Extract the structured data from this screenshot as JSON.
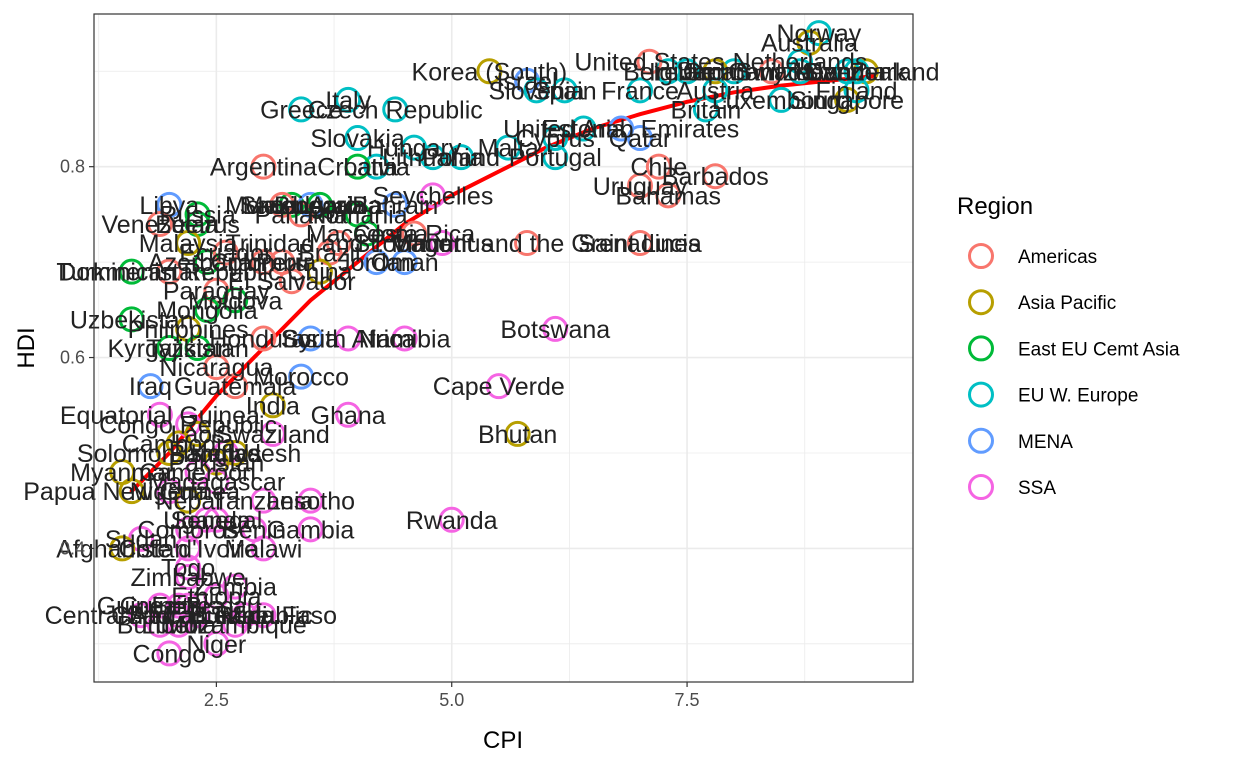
{
  "chart_data": {
    "type": "scatter",
    "xlabel": "CPI",
    "ylabel": "HDI",
    "xlim": [
      1.2,
      9.9
    ],
    "ylim": [
      0.26,
      0.96
    ],
    "x_ticks": [
      {
        "v": 2.5,
        "label": "2.5"
      },
      {
        "v": 5.0,
        "label": "5.0"
      },
      {
        "v": 7.5,
        "label": "7.5"
      }
    ],
    "y_ticks": [
      {
        "v": 0.4,
        "label": "0.4"
      },
      {
        "v": 0.6,
        "label": "0.6"
      },
      {
        "v": 0.8,
        "label": "0.8"
      }
    ],
    "grid": true,
    "legend": {
      "title": "Region",
      "position": "right",
      "entries": [
        {
          "name": "Americas",
          "color": "#F8766D"
        },
        {
          "name": "Asia Pacific",
          "color": "#B79F00"
        },
        {
          "name": "East EU Cemt Asia",
          "color": "#00BA38"
        },
        {
          "name": "EU W. Europe",
          "color": "#00BFC4"
        },
        {
          "name": "MENA",
          "color": "#619CFF"
        },
        {
          "name": "SSA",
          "color": "#F564E3"
        }
      ]
    },
    "trend_line": {
      "color": "#FF0000",
      "points": [
        [
          1.6,
          0.46
        ],
        [
          2.0,
          0.5
        ],
        [
          2.5,
          0.56
        ],
        [
          3.0,
          0.61
        ],
        [
          3.5,
          0.66
        ],
        [
          4.0,
          0.7
        ],
        [
          4.5,
          0.74
        ],
        [
          5.0,
          0.77
        ],
        [
          5.5,
          0.795
        ],
        [
          6.0,
          0.82
        ],
        [
          6.5,
          0.84
        ],
        [
          7.0,
          0.855
        ],
        [
          7.5,
          0.868
        ],
        [
          8.0,
          0.878
        ],
        [
          8.5,
          0.885
        ],
        [
          9.0,
          0.89
        ],
        [
          9.5,
          0.895
        ]
      ]
    },
    "points": [
      {
        "x": 8.9,
        "y": 0.94,
        "region": "EU W. Europe",
        "label": "Norway"
      },
      {
        "x": 8.8,
        "y": 0.93,
        "region": "Asia Pacific",
        "label": "Australia"
      },
      {
        "x": 9.4,
        "y": 0.9,
        "region": "Asia Pacific",
        "label": "New Zealand"
      },
      {
        "x": 9.2,
        "y": 0.87,
        "region": "Asia Pacific",
        "label": "Singapore"
      },
      {
        "x": 9.3,
        "y": 0.88,
        "region": "EU W. Europe",
        "label": "Finland"
      },
      {
        "x": 9.3,
        "y": 0.9,
        "region": "EU W. Europe",
        "label": "Denmark"
      },
      {
        "x": 9.2,
        "y": 0.9,
        "region": "EU W. Europe",
        "label": "Sweden"
      },
      {
        "x": 8.7,
        "y": 0.91,
        "region": "EU W. Europe",
        "label": "Netherlands"
      },
      {
        "x": 8.7,
        "y": 0.9,
        "region": "EU W. Europe",
        "label": "Switzerland"
      },
      {
        "x": 8.5,
        "y": 0.87,
        "region": "EU W. Europe",
        "label": "Luxembourg"
      },
      {
        "x": 8.4,
        "y": 0.9,
        "region": "Americas",
        "label": "Canada"
      },
      {
        "x": 8.0,
        "y": 0.9,
        "region": "EU W. Europe",
        "label": "Germany"
      },
      {
        "x": 7.7,
        "y": 0.86,
        "region": "EU W. Europe",
        "label": "Britain"
      },
      {
        "x": 7.8,
        "y": 0.9,
        "region": "Asia Pacific",
        "label": "Japan"
      },
      {
        "x": 7.5,
        "y": 0.9,
        "region": "EU W. Europe",
        "label": "Ireland"
      },
      {
        "x": 7.3,
        "y": 0.9,
        "region": "EU W. Europe",
        "label": "Belgium"
      },
      {
        "x": 7.1,
        "y": 0.91,
        "region": "Americas",
        "label": "United States"
      },
      {
        "x": 7.8,
        "y": 0.88,
        "region": "EU W. Europe",
        "label": "Austria"
      },
      {
        "x": 7.0,
        "y": 0.88,
        "region": "EU W. Europe",
        "label": "France"
      },
      {
        "x": 6.8,
        "y": 0.84,
        "region": "MENA",
        "label": "United Arab Emirates"
      },
      {
        "x": 7.0,
        "y": 0.83,
        "region": "MENA",
        "label": "Qatar"
      },
      {
        "x": 7.2,
        "y": 0.8,
        "region": "Americas",
        "label": "Chile"
      },
      {
        "x": 7.8,
        "y": 0.79,
        "region": "Americas",
        "label": "Barbados"
      },
      {
        "x": 7.0,
        "y": 0.78,
        "region": "Americas",
        "label": "Uruguay"
      },
      {
        "x": 7.3,
        "y": 0.77,
        "region": "Americas",
        "label": "Bahamas"
      },
      {
        "x": 5.4,
        "y": 0.9,
        "region": "Asia Pacific",
        "label": "Korea (South)"
      },
      {
        "x": 5.8,
        "y": 0.89,
        "region": "MENA",
        "label": "Israel"
      },
      {
        "x": 5.9,
        "y": 0.88,
        "region": "EU W. Europe",
        "label": "Slovenia"
      },
      {
        "x": 6.2,
        "y": 0.88,
        "region": "EU W. Europe",
        "label": "Spain"
      },
      {
        "x": 6.4,
        "y": 0.84,
        "region": "EU W. Europe",
        "label": "Estonia"
      },
      {
        "x": 5.6,
        "y": 0.82,
        "region": "EU W. Europe",
        "label": "Malta"
      },
      {
        "x": 6.1,
        "y": 0.81,
        "region": "EU W. Europe",
        "label": "Portugal"
      },
      {
        "x": 6.1,
        "y": 0.83,
        "region": "EU W. Europe",
        "label": "Cyprus"
      },
      {
        "x": 3.9,
        "y": 0.87,
        "region": "EU W. Europe",
        "label": "Italy"
      },
      {
        "x": 4.4,
        "y": 0.86,
        "region": "EU W. Europe",
        "label": "Czech Republic"
      },
      {
        "x": 3.4,
        "y": 0.86,
        "region": "EU W. Europe",
        "label": "Greece"
      },
      {
        "x": 4.0,
        "y": 0.83,
        "region": "EU W. Europe",
        "label": "Slovakia"
      },
      {
        "x": 4.6,
        "y": 0.82,
        "region": "EU W. Europe",
        "label": "Hungary"
      },
      {
        "x": 5.1,
        "y": 0.81,
        "region": "EU W. Europe",
        "label": "Poland"
      },
      {
        "x": 4.8,
        "y": 0.81,
        "region": "EU W. Europe",
        "label": "Lithuania"
      },
      {
        "x": 4.2,
        "y": 0.8,
        "region": "EU W. Europe",
        "label": "Latvia"
      },
      {
        "x": 3.0,
        "y": 0.8,
        "region": "Americas",
        "label": "Argentina"
      },
      {
        "x": 4.0,
        "y": 0.8,
        "region": "East EU Cemt Asia",
        "label": "Croatia"
      },
      {
        "x": 4.8,
        "y": 0.77,
        "region": "SSA",
        "label": "Seychelles"
      },
      {
        "x": 4.4,
        "y": 0.76,
        "region": "MENA",
        "label": "Bahrain"
      },
      {
        "x": 3.3,
        "y": 0.76,
        "region": "East EU Cemt Asia",
        "label": "Montenegro"
      },
      {
        "x": 3.5,
        "y": 0.76,
        "region": "MENA",
        "label": "Saudi Arabia"
      },
      {
        "x": 4.0,
        "y": 0.75,
        "region": "East EU Cemt Asia",
        "label": "Romania"
      },
      {
        "x": 3.6,
        "y": 0.76,
        "region": "East EU Cemt Asia",
        "label": "Bulgaria"
      },
      {
        "x": 2.0,
        "y": 0.76,
        "region": "MENA",
        "label": "Libya"
      },
      {
        "x": 2.3,
        "y": 0.75,
        "region": "East EU Cemt Asia",
        "label": "Russia"
      },
      {
        "x": 3.2,
        "y": 0.76,
        "region": "Americas",
        "label": "Mexico"
      },
      {
        "x": 3.4,
        "y": 0.75,
        "region": "Americas",
        "label": "Panama"
      },
      {
        "x": 2.3,
        "y": 0.74,
        "region": "East EU Cemt Asia",
        "label": "Belarus"
      },
      {
        "x": 4.6,
        "y": 0.73,
        "region": "Americas",
        "label": "Costa Rica"
      },
      {
        "x": 4.9,
        "y": 0.72,
        "region": "SSA",
        "label": "Mauritius"
      },
      {
        "x": 5.8,
        "y": 0.72,
        "region": "Americas",
        "label": "St. Vincent and the Grenadines"
      },
      {
        "x": 7.0,
        "y": 0.72,
        "region": "Americas",
        "label": "Saint Lucia"
      },
      {
        "x": 1.9,
        "y": 0.74,
        "region": "Americas",
        "label": "Venezuela"
      },
      {
        "x": 4.1,
        "y": 0.73,
        "region": "East EU Cemt Asia",
        "label": "Macedonia"
      },
      {
        "x": 3.8,
        "y": 0.72,
        "region": "Americas",
        "label": "Trinidad and Tobago"
      },
      {
        "x": 4.5,
        "y": 0.7,
        "region": "MENA",
        "label": "Oman"
      },
      {
        "x": 2.2,
        "y": 0.72,
        "region": "Asia Pacific",
        "label": "Malaysia"
      },
      {
        "x": 2.4,
        "y": 0.7,
        "region": "East EU Cemt Asia",
        "label": "Azerbaijan"
      },
      {
        "x": 2.6,
        "y": 0.71,
        "region": "Americas",
        "label": "Ecuador"
      },
      {
        "x": 3.0,
        "y": 0.7,
        "region": "Americas",
        "label": "Colombia"
      },
      {
        "x": 3.2,
        "y": 0.7,
        "region": "Americas",
        "label": "Peru"
      },
      {
        "x": 3.7,
        "y": 0.71,
        "region": "Americas",
        "label": "Brazil"
      },
      {
        "x": 4.2,
        "y": 0.7,
        "region": "MENA",
        "label": "Jordan"
      },
      {
        "x": 1.6,
        "y": 0.69,
        "region": "East EU Cemt Asia",
        "label": "Turkmenistan"
      },
      {
        "x": 2.0,
        "y": 0.69,
        "region": "Americas",
        "label": "Dominican Republic"
      },
      {
        "x": 3.3,
        "y": 0.68,
        "region": "Americas",
        "label": "El Salvador"
      },
      {
        "x": 3.6,
        "y": 0.69,
        "region": "Asia Pacific",
        "label": "China"
      },
      {
        "x": 2.5,
        "y": 0.67,
        "region": "Americas",
        "label": "Paraguay"
      },
      {
        "x": 2.7,
        "y": 0.66,
        "region": "East EU Cemt Asia",
        "label": "Moldova"
      },
      {
        "x": 2.4,
        "y": 0.65,
        "region": "East EU Cemt Asia",
        "label": "Mongolia"
      },
      {
        "x": 1.6,
        "y": 0.64,
        "region": "East EU Cemt Asia",
        "label": "Uzbekistan"
      },
      {
        "x": 2.2,
        "y": 0.63,
        "region": "Asia Pacific",
        "label": "Philippines"
      },
      {
        "x": 2.0,
        "y": 0.61,
        "region": "East EU Cemt Asia",
        "label": "Kyrgyzstan"
      },
      {
        "x": 2.3,
        "y": 0.61,
        "region": "East EU Cemt Asia",
        "label": "Tajikistan"
      },
      {
        "x": 3.0,
        "y": 0.62,
        "region": "Americas",
        "label": "Honduras"
      },
      {
        "x": 3.5,
        "y": 0.62,
        "region": "MENA",
        "label": "Syria"
      },
      {
        "x": 3.9,
        "y": 0.62,
        "region": "SSA",
        "label": "South Africa"
      },
      {
        "x": 4.5,
        "y": 0.62,
        "region": "SSA",
        "label": "Namibia"
      },
      {
        "x": 6.1,
        "y": 0.63,
        "region": "SSA",
        "label": "Botswana"
      },
      {
        "x": 2.5,
        "y": 0.59,
        "region": "Americas",
        "label": "Nicaragua"
      },
      {
        "x": 3.4,
        "y": 0.58,
        "region": "MENA",
        "label": "Morocco"
      },
      {
        "x": 1.8,
        "y": 0.57,
        "region": "MENA",
        "label": "Iraq"
      },
      {
        "x": 2.7,
        "y": 0.57,
        "region": "Americas",
        "label": "Guatemala"
      },
      {
        "x": 5.5,
        "y": 0.57,
        "region": "SSA",
        "label": "Cape Verde"
      },
      {
        "x": 3.1,
        "y": 0.55,
        "region": "Asia Pacific",
        "label": "India"
      },
      {
        "x": 3.9,
        "y": 0.54,
        "region": "SSA",
        "label": "Ghana"
      },
      {
        "x": 1.9,
        "y": 0.54,
        "region": "SSA",
        "label": "Equatorial Guinea"
      },
      {
        "x": 2.2,
        "y": 0.53,
        "region": "SSA",
        "label": "Congo Republic"
      },
      {
        "x": 2.3,
        "y": 0.52,
        "region": "Asia Pacific",
        "label": "Laos"
      },
      {
        "x": 3.1,
        "y": 0.52,
        "region": "SSA",
        "label": "Swaziland"
      },
      {
        "x": 5.7,
        "y": 0.52,
        "region": "Asia Pacific",
        "label": "Bhutan"
      },
      {
        "x": 2.1,
        "y": 0.51,
        "region": "Asia Pacific",
        "label": "Cambodia"
      },
      {
        "x": 2.6,
        "y": 0.5,
        "region": "SSA",
        "label": "Kenya"
      },
      {
        "x": 2.7,
        "y": 0.5,
        "region": "Asia Pacific",
        "label": "Bangladesh"
      },
      {
        "x": 2.0,
        "y": 0.5,
        "region": "Asia Pacific",
        "label": "Solomon Islands"
      },
      {
        "x": 2.5,
        "y": 0.49,
        "region": "Asia Pacific",
        "label": "Pakistan"
      },
      {
        "x": 1.5,
        "y": 0.48,
        "region": "Asia Pacific",
        "label": "Myanmar"
      },
      {
        "x": 2.3,
        "y": 0.48,
        "region": "SSA",
        "label": "Cameroon"
      },
      {
        "x": 2.5,
        "y": 0.47,
        "region": "SSA",
        "label": "Madagascar"
      },
      {
        "x": 1.6,
        "y": 0.46,
        "region": "Asia Pacific",
        "label": "Papua New Guinea"
      },
      {
        "x": 2.0,
        "y": 0.46,
        "region": "SSA",
        "label": "Nigeria"
      },
      {
        "x": 2.2,
        "y": 0.45,
        "region": "Asia Pacific",
        "label": "Nepal"
      },
      {
        "x": 3.0,
        "y": 0.45,
        "region": "SSA",
        "label": "Tanzania"
      },
      {
        "x": 3.5,
        "y": 0.45,
        "region": "SSA",
        "label": "Lesotho"
      },
      {
        "x": 2.5,
        "y": 0.43,
        "region": "SSA",
        "label": "Senegal"
      },
      {
        "x": 2.4,
        "y": 0.43,
        "region": "SSA",
        "label": "Uganda"
      },
      {
        "x": 2.2,
        "y": 0.42,
        "region": "SSA",
        "label": "Comoros"
      },
      {
        "x": 3.5,
        "y": 0.42,
        "region": "SSA",
        "label": "Gambia"
      },
      {
        "x": 2.9,
        "y": 0.42,
        "region": "SSA",
        "label": "Benin"
      },
      {
        "x": 5.0,
        "y": 0.43,
        "region": "SSA",
        "label": "Rwanda"
      },
      {
        "x": 1.7,
        "y": 0.41,
        "region": "SSA",
        "label": "Sudan"
      },
      {
        "x": 1.5,
        "y": 0.4,
        "region": "Asia Pacific",
        "label": "Afghanistan"
      },
      {
        "x": 2.2,
        "y": 0.4,
        "region": "SSA",
        "label": "Cote d'Ivoire"
      },
      {
        "x": 3.0,
        "y": 0.4,
        "region": "SSA",
        "label": "Malawi"
      },
      {
        "x": 2.2,
        "y": 0.38,
        "region": "SSA",
        "label": "Togo"
      },
      {
        "x": 2.2,
        "y": 0.37,
        "region": "SSA",
        "label": "Zimbabwe"
      },
      {
        "x": 2.7,
        "y": 0.36,
        "region": "SSA",
        "label": "Zambia"
      },
      {
        "x": 2.5,
        "y": 0.35,
        "region": "SSA",
        "label": "Ethiopia"
      },
      {
        "x": 2.1,
        "y": 0.34,
        "region": "SSA",
        "label": "Guinea-Bissau"
      },
      {
        "x": 1.9,
        "y": 0.34,
        "region": "SSA",
        "label": "Guinea"
      },
      {
        "x": 1.7,
        "y": 0.33,
        "region": "SSA",
        "label": "Chad"
      },
      {
        "x": 2.3,
        "y": 0.33,
        "region": "SSA",
        "label": "Sierra Leone"
      },
      {
        "x": 2.8,
        "y": 0.33,
        "region": "SSA",
        "label": "Mali"
      },
      {
        "x": 3.0,
        "y": 0.33,
        "region": "SSA",
        "label": "Burkina Faso"
      },
      {
        "x": 2.2,
        "y": 0.34,
        "region": "SSA",
        "label": "Eritrea"
      },
      {
        "x": 2.1,
        "y": 0.33,
        "region": "SSA",
        "label": "Central African Republic"
      },
      {
        "x": 2.1,
        "y": 0.32,
        "region": "SSA",
        "label": "Liberia"
      },
      {
        "x": 2.7,
        "y": 0.32,
        "region": "SSA",
        "label": "Mozambique"
      },
      {
        "x": 1.9,
        "y": 0.32,
        "region": "SSA",
        "label": "Burundi"
      },
      {
        "x": 2.5,
        "y": 0.3,
        "region": "SSA",
        "label": "Niger"
      },
      {
        "x": 2.0,
        "y": 0.29,
        "region": "SSA",
        "label": "Congo"
      }
    ]
  }
}
